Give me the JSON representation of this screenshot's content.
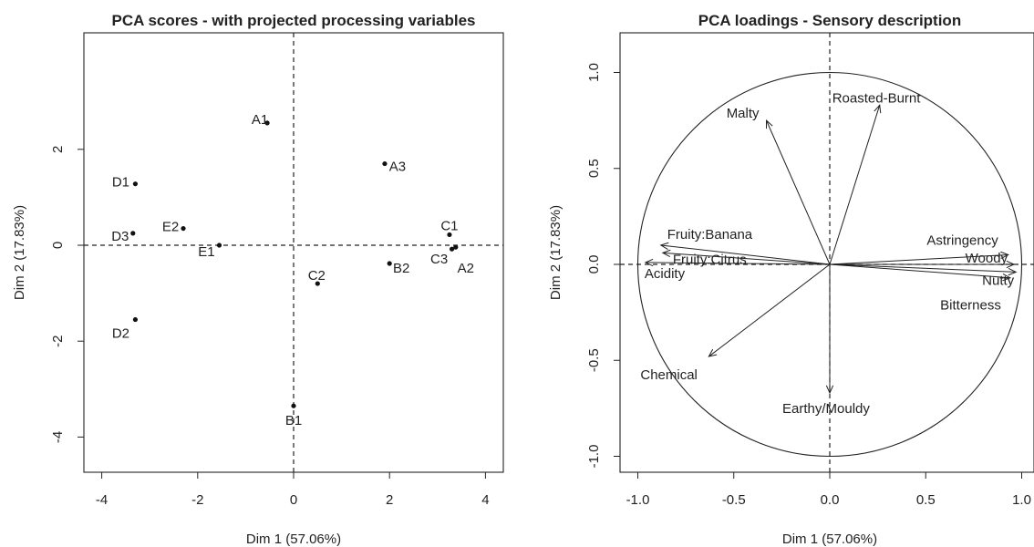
{
  "chart_data": [
    {
      "type": "scatter",
      "title": "PCA scores - with projected processing variables",
      "xlabel": "Dim 1 (57.06%)",
      "ylabel": "Dim 2 (17.83%)",
      "xlim": [
        -4.3,
        4.3
      ],
      "ylim": [
        -4.7,
        3.9
      ],
      "xticks": [
        -4,
        -2,
        0,
        2,
        4
      ],
      "yticks": [
        -4,
        -2,
        0,
        2
      ],
      "grid": false,
      "reference_lines": {
        "x": 0,
        "y": 0,
        "style": "dashed"
      },
      "points": [
        {
          "label": "A1",
          "x": -0.55,
          "y": 2.55
        },
        {
          "label": "A3",
          "x": 1.9,
          "y": 1.7
        },
        {
          "label": "D1",
          "x": -3.3,
          "y": 1.28
        },
        {
          "label": "E2",
          "x": -2.3,
          "y": 0.35
        },
        {
          "label": "D3",
          "x": -3.35,
          "y": 0.25
        },
        {
          "label": "E1",
          "x": -1.55,
          "y": 0.0
        },
        {
          "label": "C1",
          "x": 3.25,
          "y": 0.22
        },
        {
          "label": "C3",
          "x": 3.3,
          "y": -0.08
        },
        {
          "label": "A2",
          "x": 3.38,
          "y": -0.04
        },
        {
          "label": "B2",
          "x": 2.0,
          "y": -0.38
        },
        {
          "label": "C2",
          "x": 0.5,
          "y": -0.8
        },
        {
          "label": "D2",
          "x": -3.3,
          "y": -1.55
        },
        {
          "label": "B1",
          "x": 0.0,
          "y": -3.35
        }
      ]
    },
    {
      "type": "scatter",
      "title": "PCA loadings - Sensory description",
      "xlabel": "Dim 1 (57.06%)",
      "ylabel": "Dim 2 (17.83%)",
      "xlim": [
        -1.1,
        1.1
      ],
      "ylim": [
        -1.1,
        1.05
      ],
      "xticks": [
        "-1.0",
        "-0.5",
        "0.0",
        "0.5",
        "1.0"
      ],
      "yticks": [
        "-1.0",
        "-0.5",
        "0.0",
        "0.5",
        "1.0"
      ],
      "grid": false,
      "unit_circle": true,
      "reference_lines": {
        "x": 0,
        "y": 0,
        "style": "dashed"
      },
      "vectors": [
        {
          "label": "Malty",
          "x": -0.33,
          "y": 0.75
        },
        {
          "label": "Roasted-Burnt",
          "x": 0.26,
          "y": 0.83
        },
        {
          "label": "Fruity:Banana",
          "x": -0.88,
          "y": 0.1
        },
        {
          "label": "Fruity:Citrus",
          "x": -0.87,
          "y": 0.06
        },
        {
          "label": "Acidity",
          "x": -0.96,
          "y": 0.01
        },
        {
          "label": "Astringency",
          "x": 0.93,
          "y": 0.05
        },
        {
          "label": "Woody",
          "x": 0.96,
          "y": 0.0
        },
        {
          "label": "Nutty",
          "x": 0.97,
          "y": -0.04
        },
        {
          "label": "Bitterness",
          "x": 0.94,
          "y": -0.07
        },
        {
          "label": "Chemical",
          "x": -0.63,
          "y": -0.48
        },
        {
          "label": "Earthy/Mouldy",
          "x": 0.0,
          "y": -0.67
        }
      ]
    }
  ]
}
